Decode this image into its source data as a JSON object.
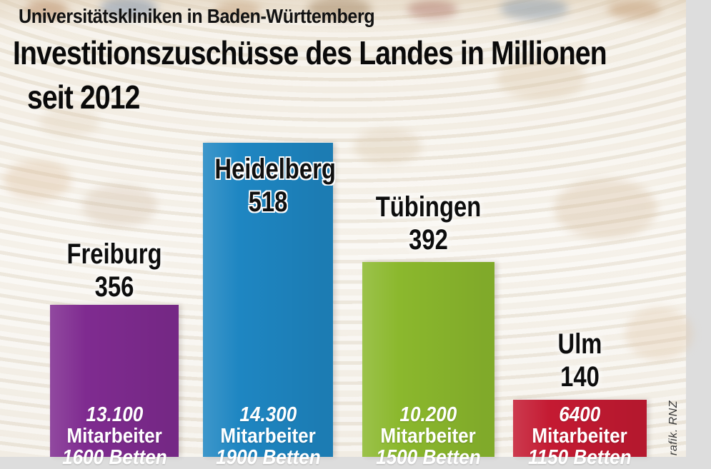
{
  "header": {
    "subtitle": "Universitätskliniken in Baden-Württemberg",
    "title_line1": "Investitionszuschüsse des Landes in Millionen",
    "title_line2": "seit 2012"
  },
  "credit": "rafik. RNZ",
  "chart_data": {
    "type": "bar",
    "title": "Investitionszuschüsse des Landes in Millionen seit 2012",
    "subtitle": "Universitätskliniken in Baden-Württemberg",
    "categories": [
      "Freiburg",
      "Heidelberg",
      "Tübingen",
      "Ulm"
    ],
    "values": [
      356,
      518,
      392,
      140
    ],
    "legend": "none",
    "axes": "none (value labels above/inside bars, bars cropped at bottom edge)",
    "bars": [
      {
        "city": "Freiburg",
        "value": "356",
        "mitarbeiter": "13.100",
        "mitarbeiter_label": "Mitarbeiter",
        "betten": "1600 Betten",
        "color": "#7f2b90"
      },
      {
        "city": "Heidelberg",
        "value": "518",
        "mitarbeiter": "14.300",
        "mitarbeiter_label": "Mitarbeiter",
        "betten": "1900 Betten",
        "color": "#1e86c2"
      },
      {
        "city": "Tübingen",
        "value": "392",
        "mitarbeiter": "10.200",
        "mitarbeiter_label": "Mitarbeiter",
        "betten": "1500 Betten",
        "color": "#8bb82d"
      },
      {
        "city": "Ulm",
        "value": "140",
        "mitarbeiter": "6400",
        "mitarbeiter_label": "Mitarbeiter",
        "betten": "1150 Betten",
        "color": "#c41a32"
      }
    ]
  }
}
